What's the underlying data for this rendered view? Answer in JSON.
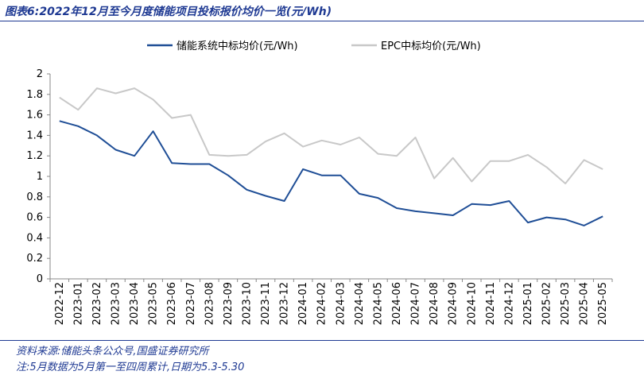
{
  "title": "图表6:2022年12月至今月度储能项目投标报价均价一览(元/Wh)",
  "source_line": "资料来源:储能头条公众号,国盛证券研究所",
  "note_line": "注:5月数据为5月第一至四周累计,日期为5.3-5.30",
  "chart_data": {
    "type": "line",
    "title": "",
    "xlabel": "",
    "ylabel": "",
    "ylim": [
      0,
      2
    ],
    "yticks": [
      "0",
      "0.2",
      "0.4",
      "0.6",
      "0.8",
      "1",
      "1.2",
      "1.4",
      "1.6",
      "1.8",
      "2"
    ],
    "grid": false,
    "legend": "top-center",
    "categories": [
      "2022-12",
      "2023-01",
      "2023-02",
      "2023-03",
      "2023-04",
      "2023-05",
      "2023-06",
      "2023-07",
      "2023-08",
      "2023-09",
      "2023-10",
      "2023-11",
      "2023-12",
      "2024-01",
      "2024-02",
      "2024-03",
      "2024-04",
      "2024-05",
      "2024-06",
      "2024-07",
      "2024-08",
      "2024-09",
      "2024-10",
      "2024-11",
      "2024-12",
      "2025-01",
      "2025-02",
      "2025-03",
      "2025-04",
      "2025-05"
    ],
    "series": [
      {
        "name": "储能系统中标均价(元/Wh)",
        "color": "#1f4e96",
        "values": [
          1.54,
          1.49,
          1.4,
          1.26,
          1.2,
          1.44,
          1.13,
          1.12,
          1.12,
          1.01,
          0.87,
          0.81,
          0.76,
          1.07,
          1.01,
          1.01,
          0.83,
          0.79,
          0.69,
          0.66,
          0.64,
          0.62,
          0.73,
          0.72,
          0.76,
          0.55,
          0.6,
          0.58,
          0.52,
          0.61
        ]
      },
      {
        "name": "EPC中标均价(元/Wh)",
        "color": "#c8c8c8",
        "values": [
          1.77,
          1.65,
          1.86,
          1.81,
          1.86,
          1.75,
          1.57,
          1.6,
          1.21,
          1.2,
          1.21,
          1.34,
          1.42,
          1.29,
          1.35,
          1.31,
          1.38,
          1.22,
          1.2,
          1.38,
          0.98,
          1.18,
          0.95,
          1.15,
          1.15,
          1.21,
          1.09,
          0.93,
          1.16,
          1.07
        ]
      }
    ]
  }
}
